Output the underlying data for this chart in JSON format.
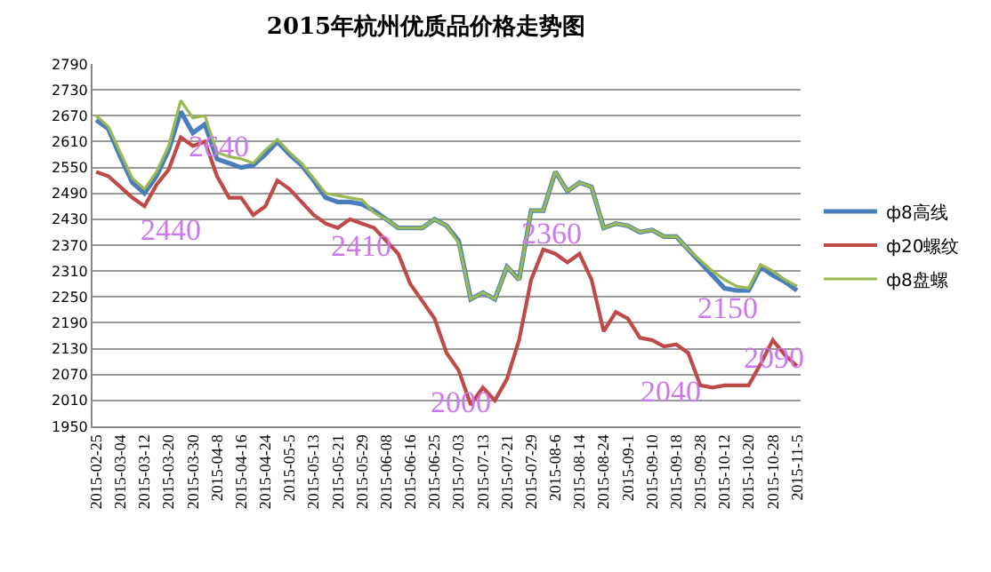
{
  "chart_data": {
    "type": "line",
    "title": "2015年杭州优质品价格走势图",
    "categories": [
      "2015-02-25",
      null,
      "2015-03-04",
      null,
      "2015-03-12",
      null,
      "2015-03-20",
      null,
      "2015-03-30",
      null,
      "2015-04-8",
      null,
      "2015-04-16",
      null,
      "2015-04-24",
      null,
      "2015-05-5",
      null,
      "2015-05-13",
      null,
      "2015-05-21",
      null,
      "2015-05-29",
      null,
      "2015-06-08",
      null,
      "2015-06-16",
      null,
      "2015-06-25",
      null,
      "2015-07-03",
      null,
      "2015-07-13",
      null,
      "2015-07-21",
      null,
      "2015-07-29",
      null,
      "2015-08-6",
      null,
      "2015-08-14",
      null,
      "2015-08-24",
      null,
      "2015-09-1",
      null,
      "2015-09-10",
      null,
      "2015-09-18",
      null,
      "2015-09-28",
      null,
      "2015-10-12",
      null,
      "2015-10-20",
      null,
      "2015-10-28",
      null,
      "2015-11-5"
    ],
    "series": [
      {
        "name": "ф8高线",
        "color": "#4a7ebb",
        "values": [
          2660,
          2640,
          2575,
          2515,
          2490,
          2530,
          2590,
          2680,
          2630,
          2650,
          2570,
          2560,
          2550,
          2555,
          2580,
          2610,
          2580,
          2555,
          2520,
          2480,
          2470,
          2470,
          2465,
          2450,
          2430,
          2410,
          2410,
          2410,
          2430,
          2415,
          2380,
          2245,
          2260,
          2245,
          2320,
          2290,
          2450,
          2450,
          2540,
          2495,
          2515,
          2505,
          2410,
          2420,
          2415,
          2400,
          2405,
          2390,
          2390,
          2360,
          2330,
          2300,
          2270,
          2265,
          2265,
          2320,
          2300,
          2285,
          2265
        ]
      },
      {
        "name": "ф20螺纹",
        "color": "#be4b48",
        "values": [
          2540,
          2530,
          2505,
          2480,
          2460,
          2510,
          2545,
          2620,
          2600,
          2610,
          2530,
          2480,
          2480,
          2440,
          2460,
          2520,
          2500,
          2470,
          2440,
          2420,
          2410,
          2430,
          2420,
          2410,
          2380,
          2350,
          2280,
          2240,
          2200,
          2120,
          2080,
          2000,
          2040,
          2010,
          2060,
          2150,
          2290,
          2360,
          2350,
          2330,
          2350,
          2290,
          2170,
          2215,
          2200,
          2155,
          2150,
          2135,
          2140,
          2120,
          2045,
          2040,
          2045,
          2045,
          2045,
          2095,
          2150,
          2115,
          2090
        ]
      },
      {
        "name": "ф8盘螺",
        "color": "#98b954",
        "values": [
          2670,
          2645,
          2585,
          2525,
          2500,
          2540,
          2600,
          2705,
          2665,
          2670,
          2585,
          2575,
          2570,
          2560,
          2590,
          2615,
          2585,
          2560,
          2525,
          2490,
          2485,
          2480,
          2475,
          2445,
          2430,
          2410,
          2410,
          2410,
          2430,
          2415,
          2375,
          2245,
          2260,
          2245,
          2320,
          2290,
          2450,
          2450,
          2540,
          2495,
          2515,
          2505,
          2410,
          2420,
          2415,
          2400,
          2405,
          2390,
          2390,
          2360,
          2335,
          2310,
          2290,
          2275,
          2270,
          2325,
          2310,
          2290,
          2275
        ]
      }
    ],
    "ylim": [
      1950,
      2790
    ],
    "yticks": [
      1950,
      2010,
      2070,
      2130,
      2190,
      2250,
      2310,
      2370,
      2430,
      2490,
      2550,
      2610,
      2670,
      2730,
      2790
    ],
    "grid": "y",
    "legend": "right",
    "marker": "none",
    "line_style": "solid",
    "annotations": [
      "2440",
      "2640",
      "2410",
      "2000",
      "2360",
      "2040",
      "2150",
      "2090"
    ]
  }
}
